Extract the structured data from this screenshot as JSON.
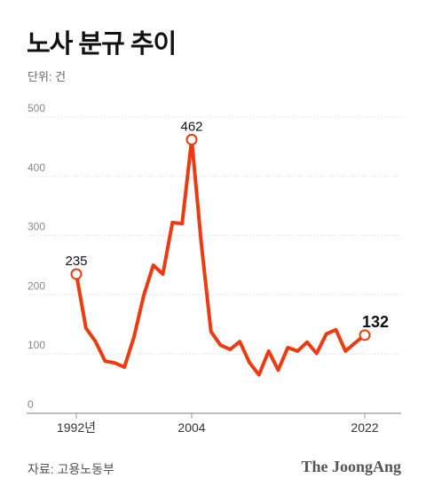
{
  "title": "노사 분규 추이",
  "unit_label": "단위: 건",
  "source": "자료: 고용노동부",
  "logo_text": "The JoongAng",
  "line_color": "#ee3a10",
  "chart_data": {
    "type": "line",
    "title": "노사 분규 추이",
    "ylabel": "단위: 건",
    "ylim": [
      0,
      500
    ],
    "yticks": [
      0,
      100,
      200,
      300,
      400,
      500
    ],
    "x_tick_labels": [
      {
        "year": 1992,
        "label": "1992년"
      },
      {
        "year": 2004,
        "label": "2004"
      },
      {
        "year": 2022,
        "label": "2022"
      }
    ],
    "grid": true,
    "series": [
      {
        "x": [
          1992,
          1993,
          1994,
          1995,
          1996,
          1997,
          1998,
          1999,
          2000,
          2001,
          2002,
          2003,
          2004,
          2005,
          2006,
          2007,
          2008,
          2009,
          2010,
          2011,
          2012,
          2013,
          2014,
          2015,
          2016,
          2017,
          2018,
          2019,
          2020,
          2021,
          2022
        ],
        "values": [
          235,
          144,
          121,
          88,
          85,
          78,
          129,
          198,
          250,
          235,
          322,
          320,
          462,
          287,
          138,
          115,
          108,
          121,
          86,
          65,
          105,
          73,
          111,
          105,
          120,
          101,
          134,
          141,
          105,
          119,
          132
        ]
      }
    ],
    "annotations": [
      {
        "year": 1992,
        "value": 235,
        "label": "235"
      },
      {
        "year": 2004,
        "value": 462,
        "label": "462"
      },
      {
        "year": 2022,
        "value": 132,
        "label": "132"
      }
    ]
  }
}
